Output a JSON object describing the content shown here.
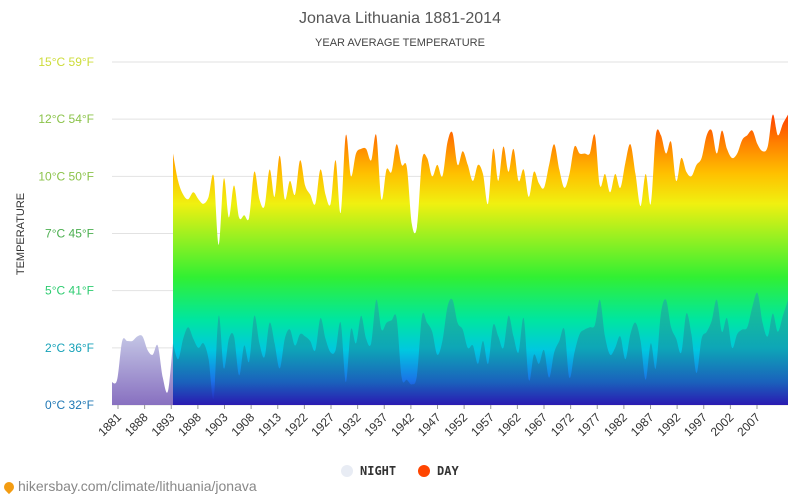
{
  "chart_data": {
    "type": "area",
    "title": "Jonava Lithuania 1881-2014",
    "subtitle": "YEAR AVERAGE TEMPERATURE",
    "ylabel": "TEMPERATURE",
    "ylim": [
      0,
      15
    ],
    "yticks": [
      {
        "value": 0,
        "label": "0°C 32°F",
        "color": "#1f77b4"
      },
      {
        "value": 2.5,
        "label": "2°C 36°F",
        "color": "#17a2b8"
      },
      {
        "value": 5,
        "label": "5°C 41°F",
        "color": "#2ecc71"
      },
      {
        "value": 7.5,
        "label": "7°C 45°F",
        "color": "#4caf50"
      },
      {
        "value": 10,
        "label": "10°C 50°F",
        "color": "#8bc34a"
      },
      {
        "value": 12.5,
        "label": "12°C 54°F",
        "color": "#8bc34a"
      },
      {
        "value": 15,
        "label": "15°C 59°F",
        "color": "#cddc39"
      }
    ],
    "x_tick_labels": [
      "1881",
      "1888",
      "1893",
      "1898",
      "1903",
      "1908",
      "1913",
      "1922",
      "1927",
      "1932",
      "1937",
      "1942",
      "1947",
      "1952",
      "1957",
      "1962",
      "1967",
      "1972",
      "1977",
      "1982",
      "1987",
      "1992",
      "1997",
      "2002",
      "2007"
    ],
    "x_start": 1881,
    "x_end": 2014,
    "grid": true,
    "legend_position": "bottom",
    "series": [
      {
        "name": "NIGHT",
        "color": "#e8ecf4",
        "points": [
          [
            1881,
            1.0
          ],
          [
            1882,
            1.1
          ],
          [
            1883,
            2.8
          ],
          [
            1884,
            2.8
          ],
          [
            1885,
            2.8
          ],
          [
            1886,
            3.0
          ],
          [
            1887,
            3.0
          ],
          [
            1888,
            2.4
          ],
          [
            1889,
            2.2
          ],
          [
            1890,
            2.6
          ],
          [
            1891,
            1.2
          ],
          [
            1892,
            0.6
          ],
          [
            1893,
            2.7
          ],
          [
            1894,
            2.0
          ],
          [
            1895,
            2.9
          ],
          [
            1896,
            3.4
          ],
          [
            1897,
            2.9
          ],
          [
            1898,
            2.5
          ],
          [
            1899,
            2.7
          ],
          [
            1900,
            2.0
          ],
          [
            1901,
            0.3
          ],
          [
            1902,
            3.9
          ],
          [
            1903,
            1.6
          ],
          [
            1904,
            2.9
          ],
          [
            1905,
            3.0
          ],
          [
            1906,
            1.3
          ],
          [
            1907,
            2.6
          ],
          [
            1908,
            1.9
          ],
          [
            1909,
            3.9
          ],
          [
            1910,
            2.7
          ],
          [
            1911,
            2.1
          ],
          [
            1912,
            3.6
          ],
          [
            1913,
            2.7
          ],
          [
            1914,
            1.6
          ],
          [
            1915,
            2.9
          ],
          [
            1916,
            3.3
          ],
          [
            1917,
            2.6
          ],
          [
            1918,
            3.1
          ],
          [
            1919,
            3.0
          ],
          [
            1920,
            2.8
          ],
          [
            1921,
            2.4
          ],
          [
            1922,
            3.8
          ],
          [
            1923,
            2.9
          ],
          [
            1924,
            2.3
          ],
          [
            1925,
            2.4
          ],
          [
            1926,
            3.6
          ],
          [
            1927,
            1.0
          ],
          [
            1928,
            3.3
          ],
          [
            1929,
            2.7
          ],
          [
            1930,
            3.9
          ],
          [
            1931,
            2.9
          ],
          [
            1932,
            2.7
          ],
          [
            1933,
            4.6
          ],
          [
            1934,
            3.3
          ],
          [
            1935,
            3.6
          ],
          [
            1936,
            3.7
          ],
          [
            1937,
            3.8
          ],
          [
            1938,
            1.2
          ],
          [
            1939,
            1.1
          ],
          [
            1940,
            0.9
          ],
          [
            1941,
            1.3
          ],
          [
            1942,
            3.9
          ],
          [
            1943,
            3.6
          ],
          [
            1944,
            3.2
          ],
          [
            1945,
            2.2
          ],
          [
            1946,
            2.8
          ],
          [
            1947,
            4.3
          ],
          [
            1948,
            4.6
          ],
          [
            1949,
            3.6
          ],
          [
            1950,
            3.3
          ],
          [
            1951,
            2.5
          ],
          [
            1952,
            2.6
          ],
          [
            1953,
            1.8
          ],
          [
            1954,
            2.8
          ],
          [
            1955,
            1.8
          ],
          [
            1956,
            3.5
          ],
          [
            1957,
            3.0
          ],
          [
            1958,
            2.5
          ],
          [
            1959,
            3.9
          ],
          [
            1960,
            3.0
          ],
          [
            1961,
            2.3
          ],
          [
            1962,
            3.8
          ],
          [
            1963,
            1.1
          ],
          [
            1964,
            2.2
          ],
          [
            1965,
            1.8
          ],
          [
            1966,
            2.4
          ],
          [
            1967,
            1.2
          ],
          [
            1968,
            2.3
          ],
          [
            1969,
            2.8
          ],
          [
            1970,
            3.3
          ],
          [
            1971,
            1.2
          ],
          [
            1972,
            2.3
          ],
          [
            1973,
            3.1
          ],
          [
            1974,
            3.3
          ],
          [
            1975,
            3.4
          ],
          [
            1976,
            3.5
          ],
          [
            1977,
            4.6
          ],
          [
            1978,
            3.0
          ],
          [
            1979,
            2.2
          ],
          [
            1980,
            2.5
          ],
          [
            1981,
            3.0
          ],
          [
            1982,
            2.0
          ],
          [
            1983,
            3.1
          ],
          [
            1984,
            3.6
          ],
          [
            1985,
            2.8
          ],
          [
            1986,
            1.1
          ],
          [
            1987,
            2.7
          ],
          [
            1988,
            1.6
          ],
          [
            1989,
            4.0
          ],
          [
            1990,
            4.6
          ],
          [
            1991,
            3.4
          ],
          [
            1992,
            2.9
          ],
          [
            1993,
            2.3
          ],
          [
            1994,
            4.0
          ],
          [
            1995,
            3.1
          ],
          [
            1996,
            1.4
          ],
          [
            1997,
            2.9
          ],
          [
            1998,
            3.2
          ],
          [
            1999,
            3.7
          ],
          [
            2000,
            4.6
          ],
          [
            2001,
            3.2
          ],
          [
            2002,
            3.8
          ],
          [
            2003,
            2.5
          ],
          [
            2004,
            3.1
          ],
          [
            2005,
            3.3
          ],
          [
            2006,
            3.4
          ],
          [
            2007,
            4.3
          ],
          [
            2008,
            4.9
          ],
          [
            2009,
            3.6
          ],
          [
            2010,
            3.0
          ],
          [
            2011,
            4.0
          ],
          [
            2012,
            3.2
          ],
          [
            2013,
            3.9
          ],
          [
            2014,
            4.6
          ]
        ]
      },
      {
        "name": "DAY",
        "color": "#ff4500",
        "points": [
          [
            1893,
            11.0
          ],
          [
            1894,
            9.8
          ],
          [
            1895,
            9.2
          ],
          [
            1896,
            9.0
          ],
          [
            1897,
            9.3
          ],
          [
            1898,
            9.0
          ],
          [
            1899,
            8.8
          ],
          [
            1900,
            9.1
          ],
          [
            1901,
            10.0
          ],
          [
            1902,
            7.0
          ],
          [
            1903,
            9.9
          ],
          [
            1904,
            8.2
          ],
          [
            1905,
            9.6
          ],
          [
            1906,
            8.2
          ],
          [
            1907,
            8.3
          ],
          [
            1908,
            8.2
          ],
          [
            1909,
            10.2
          ],
          [
            1910,
            9.0
          ],
          [
            1911,
            8.7
          ],
          [
            1912,
            10.3
          ],
          [
            1913,
            9.1
          ],
          [
            1914,
            10.9
          ],
          [
            1915,
            9.0
          ],
          [
            1916,
            9.8
          ],
          [
            1917,
            9.2
          ],
          [
            1918,
            10.7
          ],
          [
            1919,
            9.6
          ],
          [
            1920,
            9.2
          ],
          [
            1921,
            8.8
          ],
          [
            1922,
            10.3
          ],
          [
            1923,
            9.2
          ],
          [
            1924,
            8.8
          ],
          [
            1925,
            10.7
          ],
          [
            1926,
            8.4
          ],
          [
            1927,
            11.8
          ],
          [
            1928,
            10.0
          ],
          [
            1929,
            11.0
          ],
          [
            1930,
            11.2
          ],
          [
            1931,
            11.2
          ],
          [
            1932,
            10.7
          ],
          [
            1933,
            11.8
          ],
          [
            1934,
            9.0
          ],
          [
            1935,
            10.3
          ],
          [
            1936,
            10.2
          ],
          [
            1937,
            11.4
          ],
          [
            1938,
            10.5
          ],
          [
            1939,
            10.4
          ],
          [
            1940,
            7.9
          ],
          [
            1941,
            7.8
          ],
          [
            1942,
            10.7
          ],
          [
            1943,
            10.8
          ],
          [
            1944,
            10.0
          ],
          [
            1945,
            10.5
          ],
          [
            1946,
            10.0
          ],
          [
            1947,
            11.5
          ],
          [
            1948,
            11.9
          ],
          [
            1949,
            10.5
          ],
          [
            1950,
            11.1
          ],
          [
            1951,
            10.5
          ],
          [
            1952,
            9.8
          ],
          [
            1953,
            10.5
          ],
          [
            1954,
            10.1
          ],
          [
            1955,
            8.8
          ],
          [
            1956,
            11.2
          ],
          [
            1957,
            9.8
          ],
          [
            1958,
            11.3
          ],
          [
            1959,
            10.2
          ],
          [
            1960,
            11.2
          ],
          [
            1961,
            9.8
          ],
          [
            1962,
            10.3
          ],
          [
            1963,
            9.1
          ],
          [
            1964,
            10.2
          ],
          [
            1965,
            9.7
          ],
          [
            1966,
            9.5
          ],
          [
            1967,
            10.5
          ],
          [
            1968,
            11.4
          ],
          [
            1969,
            10.3
          ],
          [
            1970,
            9.5
          ],
          [
            1971,
            10.1
          ],
          [
            1972,
            11.3
          ],
          [
            1973,
            11.0
          ],
          [
            1974,
            11.0
          ],
          [
            1975,
            11.0
          ],
          [
            1976,
            11.8
          ],
          [
            1977,
            9.6
          ],
          [
            1978,
            10.1
          ],
          [
            1979,
            9.3
          ],
          [
            1980,
            10.1
          ],
          [
            1981,
            9.5
          ],
          [
            1982,
            10.6
          ],
          [
            1983,
            11.4
          ],
          [
            1984,
            10.1
          ],
          [
            1985,
            8.7
          ],
          [
            1986,
            10.1
          ],
          [
            1987,
            8.8
          ],
          [
            1988,
            11.8
          ],
          [
            1989,
            11.8
          ],
          [
            1990,
            11.0
          ],
          [
            1991,
            11.5
          ],
          [
            1992,
            9.8
          ],
          [
            1993,
            10.8
          ],
          [
            1994,
            10.2
          ],
          [
            1995,
            10.0
          ],
          [
            1996,
            10.5
          ],
          [
            1997,
            10.8
          ],
          [
            1998,
            11.8
          ],
          [
            1999,
            12.0
          ],
          [
            2000,
            11.0
          ],
          [
            2001,
            12.0
          ],
          [
            2002,
            11.2
          ],
          [
            2003,
            10.8
          ],
          [
            2004,
            11.0
          ],
          [
            2005,
            11.6
          ],
          [
            2006,
            11.8
          ],
          [
            2007,
            12.0
          ],
          [
            2008,
            11.4
          ],
          [
            2009,
            11.1
          ],
          [
            2010,
            11.3
          ],
          [
            2011,
            12.7
          ],
          [
            2012,
            11.8
          ],
          [
            2013,
            12.3
          ],
          [
            2014,
            12.7
          ]
        ]
      }
    ]
  },
  "legend": {
    "night_label": "NIGHT",
    "day_label": "DAY"
  },
  "source": "hikersbay.com/climate/lithuania/jonava"
}
